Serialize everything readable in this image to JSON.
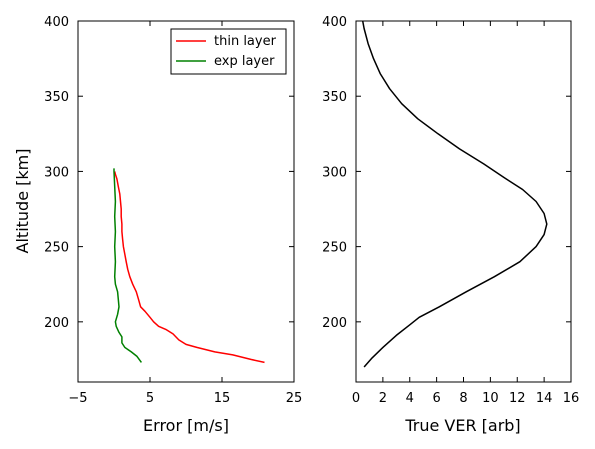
{
  "chart_data": [
    {
      "type": "line",
      "xlabel": "Error [m/s]",
      "ylabel": "Altitude [km]",
      "xlim": [
        -5,
        25
      ],
      "ylim": [
        160,
        400
      ],
      "xticks": [
        -5,
        5,
        15,
        25
      ],
      "yticks": [
        200,
        250,
        300,
        350,
        400
      ],
      "grid": false,
      "legend_position": "top-right",
      "series": [
        {
          "name": "thin layer",
          "color": "#ff0000",
          "points": [
            [
              20.9,
              173
            ],
            [
              19,
              175
            ],
            [
              16.5,
              178
            ],
            [
              14,
              180
            ],
            [
              11.5,
              183
            ],
            [
              10,
              185
            ],
            [
              9,
              188
            ],
            [
              8.2,
              192
            ],
            [
              7.2,
              195
            ],
            [
              6.2,
              197
            ],
            [
              5.5,
              200
            ],
            [
              5,
              203
            ],
            [
              4.3,
              207
            ],
            [
              3.7,
              210
            ],
            [
              3.4,
              215
            ],
            [
              3.1,
              220
            ],
            [
              2.6,
              225
            ],
            [
              2.2,
              230
            ],
            [
              1.9,
              235
            ],
            [
              1.7,
              240
            ],
            [
              1.5,
              245
            ],
            [
              1.3,
              250
            ],
            [
              1.2,
              255
            ],
            [
              1.1,
              260
            ],
            [
              1.1,
              265
            ],
            [
              1,
              270
            ],
            [
              1,
              275
            ],
            [
              0.9,
              280
            ],
            [
              0.8,
              285
            ],
            [
              0.6,
              290
            ],
            [
              0.4,
              295
            ],
            [
              0.2,
              298
            ],
            [
              0.1,
              300
            ]
          ]
        },
        {
          "name": "exp layer",
          "color": "#008000",
          "points": [
            [
              3.8,
              173
            ],
            [
              3.2,
              177
            ],
            [
              2.4,
              180
            ],
            [
              1.5,
              183
            ],
            [
              1.1,
              186
            ],
            [
              1.1,
              190
            ],
            [
              0.7,
              193
            ],
            [
              0.3,
              197
            ],
            [
              0.2,
              200
            ],
            [
              0.5,
              205
            ],
            [
              0.7,
              210
            ],
            [
              0.6,
              215
            ],
            [
              0.5,
              220
            ],
            [
              0.2,
              225
            ],
            [
              0.1,
              230
            ],
            [
              0.2,
              240
            ],
            [
              0.1,
              250
            ],
            [
              0.2,
              260
            ],
            [
              0.1,
              270
            ],
            [
              0.2,
              280
            ],
            [
              0.1,
              290
            ],
            [
              0,
              300
            ],
            [
              0,
              302
            ]
          ]
        }
      ]
    },
    {
      "type": "line",
      "xlabel": "True VER [arb]",
      "ylabel": "",
      "xlim": [
        0,
        16
      ],
      "ylim": [
        160,
        400
      ],
      "xticks": [
        0,
        2,
        4,
        6,
        8,
        10,
        12,
        14,
        16
      ],
      "yticks": [
        200,
        250,
        300,
        350,
        400
      ],
      "grid": false,
      "series": [
        {
          "color": "#000000",
          "points": [
            [
              0.6,
              170
            ],
            [
              1.2,
              176
            ],
            [
              2,
              183
            ],
            [
              3,
              191
            ],
            [
              4,
              198
            ],
            [
              4.7,
              203
            ],
            [
              6.2,
              210
            ],
            [
              8.2,
              220
            ],
            [
              10.3,
              230
            ],
            [
              12.2,
              240
            ],
            [
              13.4,
              250
            ],
            [
              14,
              258
            ],
            [
              14.2,
              265
            ],
            [
              14,
              272
            ],
            [
              13.4,
              280
            ],
            [
              12.4,
              288
            ],
            [
              11,
              296
            ],
            [
              9.5,
              305
            ],
            [
              7.7,
              315
            ],
            [
              6.1,
              325
            ],
            [
              4.6,
              335
            ],
            [
              3.4,
              345
            ],
            [
              2.5,
              355
            ],
            [
              1.8,
              365
            ],
            [
              1.3,
              375
            ],
            [
              0.9,
              385
            ],
            [
              0.6,
              395
            ],
            [
              0.5,
              400
            ]
          ]
        }
      ]
    }
  ]
}
